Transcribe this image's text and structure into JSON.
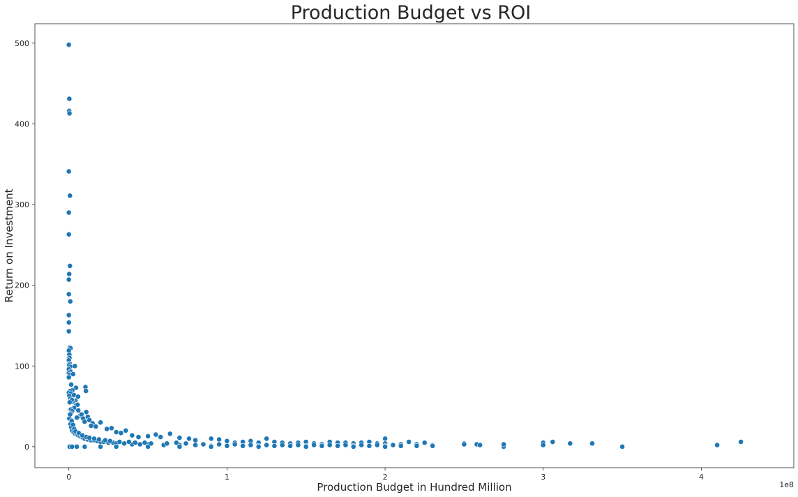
{
  "chart_data": {
    "type": "scatter",
    "title": "Production Budget vs ROI",
    "xlabel": "Production Budget in Hundred Million",
    "ylabel": "Return on Investment",
    "x_offset_label": "1e8",
    "xlim": [
      -0.215,
      4.585
    ],
    "ylim": [
      -26,
      524
    ],
    "xticks": [
      {
        "value": 0,
        "label": "0"
      },
      {
        "value": 1,
        "label": "1"
      },
      {
        "value": 2,
        "label": "2"
      },
      {
        "value": 3,
        "label": "3"
      },
      {
        "value": 4,
        "label": "4"
      }
    ],
    "yticks": [
      {
        "value": 0,
        "label": "0"
      },
      {
        "value": 100,
        "label": "100"
      },
      {
        "value": 200,
        "label": "200"
      },
      {
        "value": 300,
        "label": "300"
      },
      {
        "value": 400,
        "label": "400"
      },
      {
        "value": 500,
        "label": "500"
      }
    ],
    "grid": false,
    "marker_color": "#1f77b4",
    "marker_edge_color": "#ffffff",
    "points": [
      [
        0.0,
        498
      ],
      [
        0.003,
        431
      ],
      [
        0.002,
        416
      ],
      [
        0.004,
        413
      ],
      [
        0.0,
        341
      ],
      [
        0.007,
        311
      ],
      [
        0.0,
        290
      ],
      [
        0.0,
        263
      ],
      [
        0.007,
        224
      ],
      [
        0.002,
        214
      ],
      [
        0.0,
        207
      ],
      [
        0.0,
        189
      ],
      [
        0.009,
        180
      ],
      [
        0.0,
        163
      ],
      [
        0.0,
        154
      ],
      [
        0.0,
        143
      ],
      [
        0.006,
        123
      ],
      [
        0.011,
        122
      ],
      [
        0.0,
        119
      ],
      [
        0.003,
        114
      ],
      [
        0.004,
        110
      ],
      [
        0.0,
        107
      ],
      [
        0.005,
        103
      ],
      [
        0.002,
        101
      ],
      [
        0.009,
        99
      ],
      [
        0.0,
        96
      ],
      [
        0.011,
        93
      ],
      [
        0.0,
        91
      ],
      [
        0.006,
        89
      ],
      [
        0.0,
        86
      ],
      [
        0.038,
        100
      ],
      [
        0.027,
        90
      ],
      [
        0.045,
        73
      ],
      [
        0.015,
        77
      ],
      [
        0.022,
        70
      ],
      [
        0.008,
        69
      ],
      [
        0.0,
        67
      ],
      [
        0.012,
        66
      ],
      [
        0.003,
        63
      ],
      [
        0.032,
        64
      ],
      [
        0.058,
        62
      ],
      [
        0.041,
        57
      ],
      [
        0.025,
        56
      ],
      [
        0.047,
        52
      ],
      [
        0.055,
        52
      ],
      [
        0.105,
        74
      ],
      [
        0.108,
        69
      ],
      [
        0.01,
        60
      ],
      [
        0.019,
        58
      ],
      [
        0.005,
        55
      ],
      [
        0.033,
        48
      ],
      [
        0.012,
        46
      ],
      [
        0.06,
        45
      ],
      [
        0.02,
        44
      ],
      [
        0.07,
        38
      ],
      [
        0.11,
        43
      ],
      [
        0.013,
        41
      ],
      [
        0.08,
        40
      ],
      [
        0.05,
        36
      ],
      [
        0.09,
        35
      ],
      [
        0.12,
        37
      ],
      [
        0.13,
        33
      ],
      [
        0.1,
        31
      ],
      [
        0.15,
        29
      ],
      [
        0.2,
        30
      ],
      [
        0.14,
        26
      ],
      [
        0.17,
        25
      ],
      [
        0.24,
        22
      ],
      [
        0.27,
        23
      ],
      [
        0.3,
        18
      ],
      [
        0.33,
        17
      ],
      [
        0.36,
        20
      ],
      [
        0.4,
        14
      ],
      [
        0.44,
        12
      ],
      [
        0.5,
        13
      ],
      [
        0.55,
        15
      ],
      [
        0.58,
        12
      ],
      [
        0.64,
        16
      ],
      [
        0.7,
        11
      ],
      [
        0.76,
        10
      ],
      [
        0.8,
        8
      ],
      [
        0.9,
        10
      ],
      [
        0.95,
        9
      ],
      [
        1.0,
        7
      ],
      [
        1.05,
        5
      ],
      [
        1.1,
        6
      ],
      [
        1.15,
        7
      ],
      [
        1.2,
        5
      ],
      [
        1.25,
        10
      ],
      [
        1.3,
        6
      ],
      [
        1.35,
        5
      ],
      [
        1.4,
        4
      ],
      [
        1.45,
        5
      ],
      [
        1.5,
        6
      ],
      [
        1.55,
        4
      ],
      [
        1.6,
        3
      ],
      [
        1.65,
        6
      ],
      [
        1.7,
        5
      ],
      [
        1.75,
        5
      ],
      [
        1.8,
        4
      ],
      [
        1.85,
        5
      ],
      [
        1.9,
        6
      ],
      [
        1.95,
        4
      ],
      [
        2.0,
        10
      ],
      [
        2.0,
        4
      ],
      [
        2.05,
        2
      ],
      [
        2.1,
        3
      ],
      [
        2.15,
        6
      ],
      [
        2.2,
        3
      ],
      [
        2.25,
        5
      ],
      [
        2.3,
        2
      ],
      [
        2.5,
        4
      ],
      [
        2.5,
        3
      ],
      [
        2.58,
        3
      ],
      [
        2.6,
        2
      ],
      [
        2.75,
        0
      ],
      [
        2.75,
        3
      ],
      [
        3.0,
        5
      ],
      [
        3.0,
        2
      ],
      [
        3.06,
        6
      ],
      [
        3.17,
        4
      ],
      [
        3.31,
        4
      ],
      [
        3.5,
        0
      ],
      [
        4.1,
        2
      ],
      [
        4.25,
        6
      ],
      [
        0.01,
        28
      ],
      [
        0.015,
        24
      ],
      [
        0.02,
        20
      ],
      [
        0.03,
        18
      ],
      [
        0.04,
        16
      ],
      [
        0.05,
        15
      ],
      [
        0.06,
        14
      ],
      [
        0.07,
        13
      ],
      [
        0.08,
        12
      ],
      [
        0.09,
        11
      ],
      [
        0.1,
        10
      ],
      [
        0.12,
        9
      ],
      [
        0.14,
        8
      ],
      [
        0.16,
        8
      ],
      [
        0.18,
        7
      ],
      [
        0.2,
        6
      ],
      [
        0.22,
        6
      ],
      [
        0.25,
        5
      ],
      [
        0.28,
        5
      ],
      [
        0.3,
        4
      ],
      [
        0.35,
        4
      ],
      [
        0.4,
        3
      ],
      [
        0.45,
        3
      ],
      [
        0.5,
        3
      ],
      [
        0.6,
        2
      ],
      [
        0.7,
        2
      ],
      [
        0.8,
        2
      ],
      [
        0.9,
        1
      ],
      [
        1.0,
        1
      ],
      [
        1.1,
        1
      ],
      [
        1.2,
        1
      ],
      [
        1.3,
        1
      ],
      [
        1.4,
        1
      ],
      [
        1.5,
        1
      ],
      [
        1.6,
        1
      ],
      [
        1.7,
        1
      ],
      [
        1.8,
        1
      ],
      [
        1.9,
        1
      ],
      [
        2.0,
        1
      ],
      [
        2.1,
        1
      ],
      [
        2.2,
        1
      ],
      [
        0.005,
        0
      ],
      [
        0.02,
        0
      ],
      [
        0.05,
        0
      ],
      [
        0.1,
        0
      ],
      [
        0.2,
        0
      ],
      [
        0.3,
        0
      ],
      [
        0.5,
        0
      ],
      [
        0.7,
        0
      ],
      [
        0.9,
        0
      ],
      [
        1.2,
        0
      ],
      [
        1.5,
        0
      ],
      [
        1.8,
        0
      ],
      [
        2.0,
        0
      ],
      [
        2.3,
        1
      ],
      [
        0.003,
        35
      ],
      [
        0.008,
        40
      ],
      [
        0.018,
        32
      ],
      [
        0.026,
        27
      ],
      [
        0.034,
        22
      ],
      [
        0.042,
        19
      ],
      [
        0.062,
        17
      ],
      [
        0.085,
        14
      ],
      [
        0.11,
        12
      ],
      [
        0.13,
        11
      ],
      [
        0.16,
        10
      ],
      [
        0.19,
        9
      ],
      [
        0.23,
        8
      ],
      [
        0.26,
        7
      ],
      [
        0.32,
        6
      ],
      [
        0.38,
        6
      ],
      [
        0.42,
        5
      ],
      [
        0.48,
        5
      ],
      [
        0.52,
        4
      ],
      [
        0.62,
        4
      ],
      [
        0.68,
        5
      ],
      [
        0.74,
        4
      ],
      [
        0.85,
        3
      ],
      [
        0.95,
        3
      ],
      [
        1.05,
        3
      ],
      [
        1.15,
        2
      ],
      [
        1.25,
        2
      ],
      [
        1.35,
        2
      ],
      [
        1.45,
        2
      ],
      [
        1.55,
        2
      ],
      [
        1.65,
        2
      ],
      [
        1.75,
        2
      ],
      [
        1.85,
        2
      ],
      [
        1.95,
        2
      ]
    ]
  }
}
